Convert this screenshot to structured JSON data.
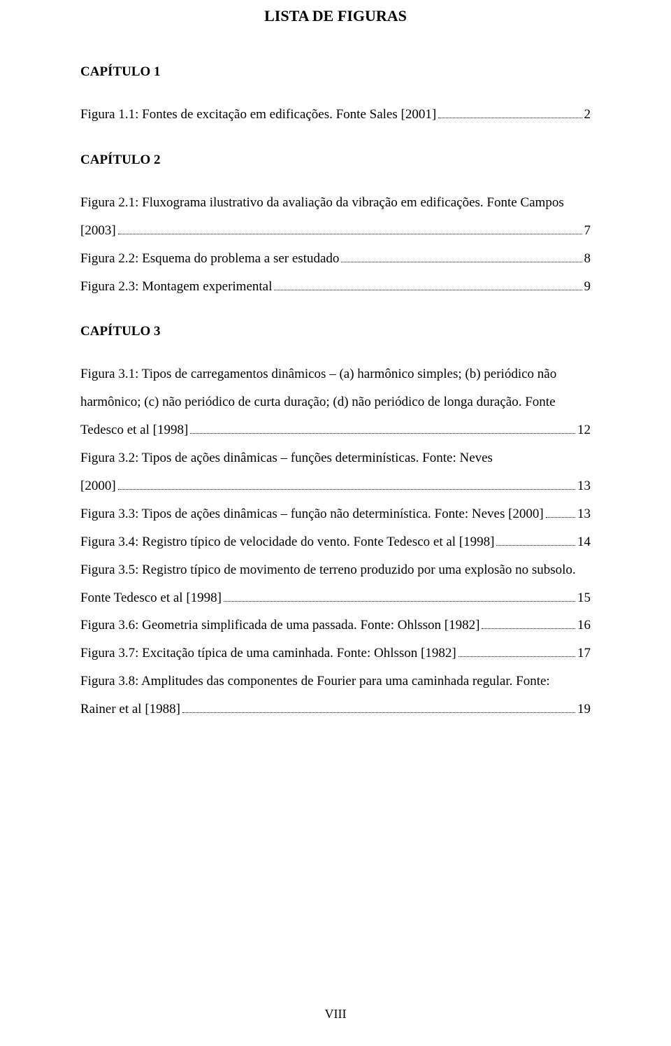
{
  "title": "LISTA DE FIGURAS",
  "pageNumber": "VIII",
  "sections": [
    {
      "heading": "CAPÍTULO 1",
      "entries": [
        {
          "lines": [],
          "lastPrefix": "Figura 1.1: Fontes de excitação em edificações. Fonte Sales [2001]",
          "page": "2"
        }
      ]
    },
    {
      "heading": "CAPÍTULO 2",
      "entries": [
        {
          "lines": [
            "Figura 2.1: Fluxograma ilustrativo da avaliação da vibração em edificações. Fonte Campos"
          ],
          "lastPrefix": "[2003]",
          "page": "7"
        },
        {
          "lines": [],
          "lastPrefix": "Figura 2.2: Esquema do problema a ser estudado",
          "page": "8"
        },
        {
          "lines": [],
          "lastPrefix": "Figura 2.3: Montagem experimental",
          "page": "9"
        }
      ]
    },
    {
      "heading": "CAPÍTULO 3",
      "entries": [
        {
          "lines": [
            "Figura 3.1: Tipos de carregamentos dinâmicos – (a) harmônico simples; (b) periódico não",
            "harmônico; (c) não periódico de curta duração; (d) não periódico de longa duração. Fonte"
          ],
          "lastPrefix": "Tedesco et al [1998]",
          "page": "12"
        },
        {
          "lines": [
            "Figura 3.2: Tipos de ações dinâmicas – funções determinísticas. Fonte: Neves"
          ],
          "lastPrefix": "[2000]",
          "page": "13"
        },
        {
          "lines": [],
          "lastPrefix": "Figura 3.3: Tipos de ações dinâmicas – função não determinística. Fonte: Neves [2000]",
          "page": "13"
        },
        {
          "lines": [],
          "lastPrefix": "Figura 3.4: Registro típico de velocidade do vento. Fonte Tedesco et al [1998]",
          "page": "14"
        },
        {
          "lines": [
            "Figura 3.5: Registro típico de movimento de terreno produzido por uma explosão no subsolo."
          ],
          "lastPrefix": "Fonte Tedesco et al [1998]",
          "page": "15"
        },
        {
          "lines": [],
          "lastPrefix": "Figura 3.6: Geometria simplificada de uma passada. Fonte: Ohlsson [1982]",
          "page": "16"
        },
        {
          "lines": [],
          "lastPrefix": "Figura 3.7: Excitação típica de uma caminhada. Fonte: Ohlsson [1982]",
          "page": "17"
        },
        {
          "lines": [
            "Figura 3.8: Amplitudes das componentes de Fourier para uma caminhada regular. Fonte:"
          ],
          "lastPrefix": "Rainer et al [1988]",
          "page": "19"
        }
      ]
    }
  ]
}
